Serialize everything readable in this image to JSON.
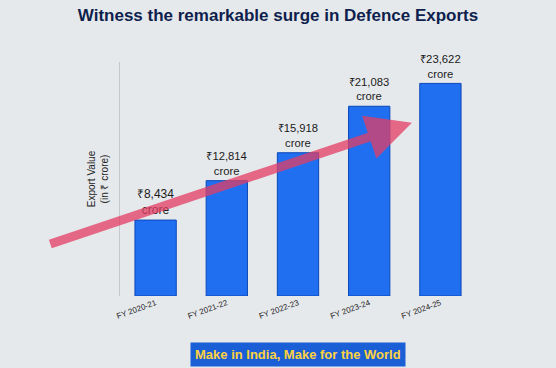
{
  "chart_data": {
    "type": "bar",
    "title": "Witness the remarkable surge in Defence Exports",
    "ylabel": [
      "Export Value",
      "(in ₹ crore)"
    ],
    "categories": [
      "FY 2020-21",
      "FY 2021-22",
      "FY 2022-23",
      "FY 2023-24",
      "FY 2024-25"
    ],
    "values": [
      8434,
      12814,
      15918,
      21083,
      23622
    ],
    "value_labels": [
      "₹8,434 crore",
      "₹12,814 crore",
      "₹15,918 crore",
      "₹21,083 crore",
      "₹23,622 crore"
    ],
    "data_labels": true,
    "color": "#1f6ff0",
    "ylim": [
      0,
      26000
    ],
    "grid": false,
    "tick_labels": "x",
    "footer": "Make in India, Make for the World"
  }
}
